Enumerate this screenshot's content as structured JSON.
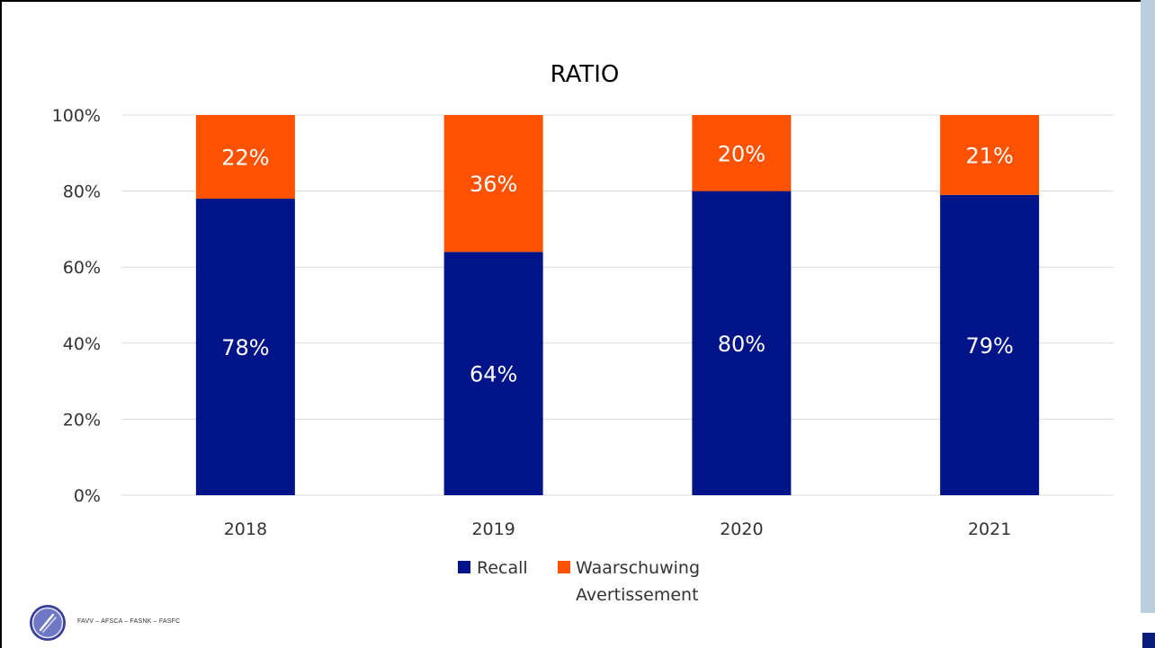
{
  "chart_data": {
    "type": "bar",
    "stacked": true,
    "title": "RATIO",
    "categories": [
      "2018",
      "2019",
      "2020",
      "2021"
    ],
    "series": [
      {
        "name": "Recall",
        "values": [
          78,
          64,
          80,
          79
        ],
        "labels": [
          "78%",
          "64%",
          "80%",
          "79%"
        ],
        "color": "#001489"
      },
      {
        "name": "Waarschuwing Avertissement",
        "values": [
          22,
          36,
          20,
          21
        ],
        "labels": [
          "22%",
          "36%",
          "20%",
          "21%"
        ],
        "color": "#ff5200"
      }
    ],
    "y_ticks": [
      "0%",
      "20%",
      "40%",
      "60%",
      "80%",
      "100%"
    ],
    "ylim": [
      0,
      100
    ],
    "grid": true,
    "legend": {
      "position": "bottom",
      "entries": [
        {
          "label": "Recall",
          "color": "#001489"
        },
        {
          "label_line1": "Waarschuwing",
          "label_line2": "Avertissement",
          "color": "#ff5200"
        }
      ]
    }
  },
  "footer": {
    "agency_names": "FAVV  –  AFSCA  –  FASNK  –  FASFC",
    "logo_icon": "fork-knife-icon"
  },
  "colors": {
    "side_panel": "#b9cfe0",
    "corner_mark": "#0b1d7a",
    "grid": "#d9d9d9"
  }
}
